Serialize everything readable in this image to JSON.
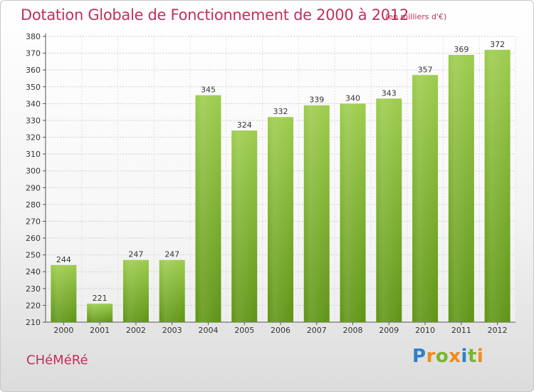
{
  "title": "Dotation Globale de Fonctionnement de 2000 à 2012",
  "subtitle": "(en milliers d'€)",
  "commune": "CHéMéRé",
  "logo": {
    "text": "Proxiti"
  },
  "colors": {
    "bar_light": "#9ccc4c",
    "bar_dark": "#5e9414",
    "title": "#c0305a"
  },
  "chart_data": {
    "type": "bar",
    "categories": [
      "2000",
      "2001",
      "2002",
      "2003",
      "2004",
      "2005",
      "2006",
      "2007",
      "2008",
      "2009",
      "2010",
      "2011",
      "2012"
    ],
    "values": [
      244,
      221,
      247,
      247,
      345,
      324,
      332,
      339,
      340,
      343,
      357,
      369,
      372
    ],
    "ylim": [
      210,
      380
    ],
    "yticks": [
      210,
      220,
      230,
      240,
      250,
      260,
      270,
      280,
      290,
      300,
      310,
      320,
      330,
      340,
      350,
      360,
      370,
      380
    ],
    "grid": true
  }
}
